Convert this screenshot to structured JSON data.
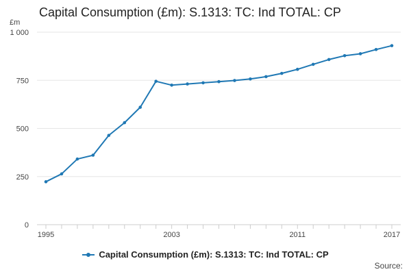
{
  "chart_data": {
    "type": "line",
    "title": "Capital Consumption (£m): S.1313: TC: Ind TOTAL: CP",
    "ylabel": "£m",
    "xlabel": "",
    "ylim": [
      0,
      1000
    ],
    "xlim": [
      1995,
      2017
    ],
    "y_ticks": [
      0,
      250,
      500,
      750,
      1000
    ],
    "y_tick_labels": [
      "0",
      "250",
      "500",
      "750",
      "1 000"
    ],
    "x_ticks": [
      1995,
      2003,
      2011,
      2017
    ],
    "x_tick_labels": [
      "1995",
      "2003",
      "2011",
      "2017"
    ],
    "grid": true,
    "legend_position": "bottom",
    "series": [
      {
        "name": "Capital Consumption (£m): S.1313: TC: Ind TOTAL: CP",
        "color": "#1f78b4",
        "x": [
          1995,
          1996,
          1997,
          1998,
          1999,
          2000,
          2001,
          2002,
          2003,
          2004,
          2005,
          2006,
          2007,
          2008,
          2009,
          2010,
          2011,
          2012,
          2013,
          2014,
          2015,
          2016,
          2017
        ],
        "values": [
          223,
          264,
          341,
          361,
          464,
          530,
          610,
          745,
          725,
          731,
          737,
          743,
          749,
          757,
          769,
          786,
          807,
          833,
          858,
          878,
          888,
          910,
          930
        ]
      }
    ]
  },
  "legend": {
    "label": "Capital Consumption (£m): S.1313: TC: Ind TOTAL: CP"
  },
  "source_label": "Source:"
}
